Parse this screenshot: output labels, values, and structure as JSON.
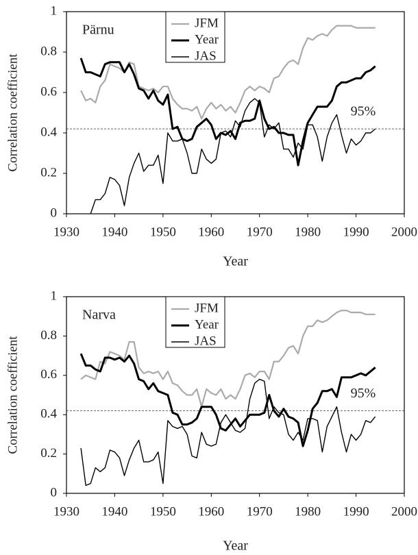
{
  "chart_data": [
    {
      "type": "line",
      "title": "Pärnu",
      "xlabel": "Year",
      "ylabel": "Correlation coefficient",
      "xlim": [
        1930,
        2000
      ],
      "xticks": [
        1930,
        1940,
        1950,
        1960,
        1970,
        1980,
        1990,
        2000
      ],
      "ylim": [
        0,
        1
      ],
      "yticks": [
        0,
        0.2,
        0.4,
        0.6,
        0.8,
        1
      ],
      "hline": {
        "value": 0.42,
        "label": "95%"
      },
      "x": [
        1933,
        1934,
        1935,
        1936,
        1937,
        1938,
        1939,
        1940,
        1941,
        1942,
        1943,
        1944,
        1945,
        1946,
        1947,
        1948,
        1949,
        1950,
        1951,
        1952,
        1953,
        1954,
        1955,
        1956,
        1957,
        1958,
        1959,
        1960,
        1961,
        1962,
        1963,
        1964,
        1965,
        1966,
        1967,
        1968,
        1969,
        1970,
        1971,
        1972,
        1973,
        1974,
        1975,
        1976,
        1977,
        1978,
        1979,
        1980,
        1981,
        1982,
        1983,
        1984,
        1985,
        1986,
        1987,
        1988,
        1989,
        1990,
        1991,
        1992,
        1993,
        1994
      ],
      "series": [
        {
          "name": "JFM",
          "color": "#aaaaaa",
          "width": 2.2,
          "values": [
            0.61,
            0.56,
            0.57,
            0.55,
            0.63,
            0.66,
            0.74,
            0.73,
            0.72,
            0.7,
            0.75,
            0.74,
            0.63,
            0.62,
            0.61,
            0.62,
            0.6,
            0.63,
            0.63,
            0.57,
            0.54,
            0.52,
            0.52,
            0.51,
            0.53,
            0.47,
            0.52,
            0.55,
            0.52,
            0.54,
            0.51,
            0.53,
            0.5,
            0.55,
            0.61,
            0.63,
            0.61,
            0.63,
            0.62,
            0.6,
            0.67,
            0.68,
            0.72,
            0.75,
            0.76,
            0.74,
            0.82,
            0.87,
            0.86,
            0.88,
            0.89,
            0.88,
            0.91,
            0.93,
            0.93,
            0.93,
            0.93,
            0.92,
            0.92,
            0.92,
            0.92,
            0.92
          ]
        },
        {
          "name": "Year",
          "color": "#000000",
          "width": 3,
          "values": [
            0.77,
            0.7,
            0.7,
            0.69,
            0.68,
            0.74,
            0.75,
            0.75,
            0.75,
            0.7,
            0.74,
            0.69,
            0.62,
            0.61,
            0.57,
            0.61,
            0.56,
            0.54,
            0.59,
            0.42,
            0.43,
            0.37,
            0.36,
            0.37,
            0.43,
            0.45,
            0.47,
            0.44,
            0.37,
            0.4,
            0.39,
            0.41,
            0.37,
            0.45,
            0.46,
            0.46,
            0.47,
            0.56,
            0.47,
            0.42,
            0.43,
            0.4,
            0.4,
            0.39,
            0.39,
            0.24,
            0.36,
            0.45,
            0.49,
            0.53,
            0.53,
            0.53,
            0.56,
            0.63,
            0.65,
            0.65,
            0.66,
            0.67,
            0.67,
            0.7,
            0.71,
            0.73
          ]
        },
        {
          "name": "JAS",
          "color": "#000000",
          "width": 1.4,
          "values": [
            null,
            null,
            0.0,
            0.07,
            0.07,
            0.1,
            0.18,
            0.17,
            0.14,
            0.04,
            0.18,
            0.25,
            0.3,
            0.21,
            0.24,
            0.24,
            0.29,
            0.15,
            0.4,
            0.36,
            0.36,
            0.37,
            0.3,
            0.2,
            0.2,
            0.32,
            0.27,
            0.25,
            0.27,
            0.4,
            0.41,
            0.38,
            0.46,
            0.43,
            0.51,
            0.55,
            0.57,
            0.55,
            0.38,
            0.44,
            0.42,
            0.45,
            0.32,
            0.32,
            0.28,
            0.35,
            0.32,
            0.44,
            0.44,
            0.38,
            0.26,
            0.38,
            0.45,
            0.49,
            0.39,
            0.3,
            0.37,
            0.34,
            0.36,
            0.4,
            0.4,
            0.42
          ]
        }
      ]
    },
    {
      "type": "line",
      "title": "Narva",
      "xlabel": "Year",
      "ylabel": "Correlation coefficient",
      "xlim": [
        1930,
        2000
      ],
      "xticks": [
        1930,
        1940,
        1950,
        1960,
        1970,
        1980,
        1990,
        2000
      ],
      "ylim": [
        0,
        1
      ],
      "yticks": [
        0,
        0.2,
        0.4,
        0.6,
        0.8,
        1
      ],
      "hline": {
        "value": 0.42,
        "label": "95%"
      },
      "x": [
        1933,
        1934,
        1935,
        1936,
        1937,
        1938,
        1939,
        1940,
        1941,
        1942,
        1943,
        1944,
        1945,
        1946,
        1947,
        1948,
        1949,
        1950,
        1951,
        1952,
        1953,
        1954,
        1955,
        1956,
        1957,
        1958,
        1959,
        1960,
        1961,
        1962,
        1963,
        1964,
        1965,
        1966,
        1967,
        1968,
        1969,
        1970,
        1971,
        1972,
        1973,
        1974,
        1975,
        1976,
        1977,
        1978,
        1979,
        1980,
        1981,
        1982,
        1983,
        1984,
        1985,
        1986,
        1987,
        1988,
        1989,
        1990,
        1991,
        1992,
        1993,
        1994
      ],
      "series": [
        {
          "name": "JFM",
          "color": "#aaaaaa",
          "width": 2.2,
          "values": [
            0.58,
            0.6,
            0.59,
            0.58,
            0.67,
            0.66,
            0.72,
            0.71,
            0.7,
            0.68,
            0.77,
            0.77,
            0.64,
            0.61,
            0.62,
            0.61,
            0.62,
            0.58,
            0.62,
            0.56,
            0.55,
            0.52,
            0.5,
            0.5,
            0.53,
            0.44,
            0.53,
            0.51,
            0.5,
            0.53,
            0.48,
            0.5,
            0.48,
            0.53,
            0.6,
            0.61,
            0.59,
            0.62,
            0.62,
            0.58,
            0.67,
            0.67,
            0.7,
            0.74,
            0.75,
            0.71,
            0.8,
            0.85,
            0.85,
            0.88,
            0.87,
            0.88,
            0.9,
            0.92,
            0.93,
            0.93,
            0.92,
            0.92,
            0.92,
            0.91,
            0.91,
            0.91
          ]
        },
        {
          "name": "Year",
          "color": "#000000",
          "width": 3,
          "values": [
            0.71,
            0.65,
            0.65,
            0.63,
            0.62,
            0.69,
            0.69,
            0.68,
            0.69,
            0.67,
            0.7,
            0.66,
            0.58,
            0.57,
            0.53,
            0.56,
            0.52,
            0.51,
            0.5,
            0.41,
            0.4,
            0.35,
            0.35,
            0.36,
            0.38,
            0.44,
            0.44,
            0.44,
            0.4,
            0.33,
            0.32,
            0.35,
            0.38,
            0.34,
            0.37,
            0.4,
            0.4,
            0.4,
            0.41,
            0.5,
            0.42,
            0.39,
            0.43,
            0.39,
            0.38,
            0.36,
            0.24,
            0.32,
            0.43,
            0.46,
            0.52,
            0.52,
            0.53,
            0.49,
            0.59,
            0.59,
            0.59,
            0.6,
            0.61,
            0.6,
            0.62,
            0.64
          ]
        },
        {
          "name": "JAS",
          "color": "#000000",
          "width": 1.4,
          "values": [
            0.23,
            0.04,
            0.05,
            0.13,
            0.11,
            0.13,
            0.22,
            0.21,
            0.18,
            0.09,
            0.17,
            0.23,
            0.27,
            0.16,
            0.16,
            0.17,
            0.21,
            0.05,
            0.37,
            0.34,
            0.33,
            0.34,
            0.3,
            0.19,
            0.18,
            0.31,
            0.25,
            0.24,
            0.25,
            0.36,
            0.4,
            0.36,
            0.32,
            0.31,
            0.33,
            0.48,
            0.56,
            0.58,
            0.57,
            0.38,
            0.44,
            0.41,
            0.4,
            0.3,
            0.27,
            0.31,
            0.27,
            0.38,
            0.38,
            0.37,
            0.21,
            0.34,
            0.39,
            0.44,
            0.31,
            0.21,
            0.3,
            0.27,
            0.3,
            0.37,
            0.36,
            0.39
          ]
        }
      ]
    }
  ]
}
